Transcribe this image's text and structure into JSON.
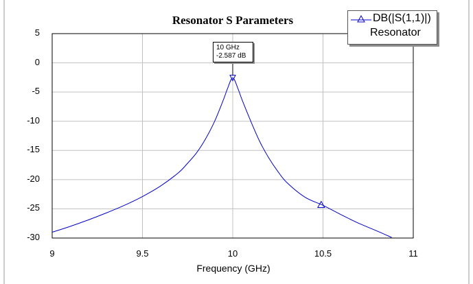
{
  "chart_data": {
    "type": "line",
    "title": "Resonator S Parameters",
    "xlabel": "Frequency (GHz)",
    "ylabel": "",
    "xlim": [
      9,
      11
    ],
    "ylim": [
      -30,
      5
    ],
    "xticks": [
      9,
      9.5,
      10,
      10.5,
      11
    ],
    "xtick_labels": [
      "9",
      "9.5",
      "10",
      "10.5",
      "11"
    ],
    "yticks": [
      5,
      0,
      -5,
      -10,
      -15,
      -20,
      -25,
      -30
    ],
    "ytick_labels": [
      "5",
      "0",
      "-5",
      "-10",
      "-15",
      "-20",
      "-25",
      "-30"
    ],
    "grid": true,
    "legend": {
      "placement": "top-right",
      "series": "DB(|S(1,1)|)",
      "source": "Resonator"
    },
    "series": [
      {
        "name": "DB(|S(1,1)|)",
        "color": "#0000cc",
        "x": [
          9.0,
          9.1,
          9.2,
          9.3,
          9.4,
          9.5,
          9.6,
          9.7,
          9.75,
          9.8,
          9.85,
          9.9,
          9.95,
          9.97,
          10.0,
          10.03,
          10.05,
          10.1,
          10.15,
          10.2,
          10.25,
          10.3,
          10.4,
          10.5,
          10.6,
          10.7,
          10.8,
          10.88
        ],
        "values": [
          -29.0,
          -28.0,
          -26.9,
          -25.7,
          -24.4,
          -22.9,
          -21.1,
          -18.8,
          -17.2,
          -15.4,
          -13.0,
          -10.0,
          -6.2,
          -4.5,
          -2.587,
          -4.5,
          -6.2,
          -10.0,
          -13.5,
          -16.3,
          -18.6,
          -20.5,
          -23.0,
          -24.4,
          -26.0,
          -27.5,
          -28.8,
          -29.9
        ]
      }
    ],
    "markers": [
      {
        "x": 10.0,
        "y": -2.587,
        "shape": "triangle-down"
      },
      {
        "x": 10.49,
        "y": -24.3,
        "shape": "triangle-up"
      }
    ],
    "annotation": {
      "line1": "10 GHz",
      "line2": "-2.587 dB"
    }
  },
  "colors": {
    "series": "#0000cc",
    "grid": "#c0c0c0",
    "frame": "#000000",
    "right_scrollbar": "#d4d4d4"
  }
}
